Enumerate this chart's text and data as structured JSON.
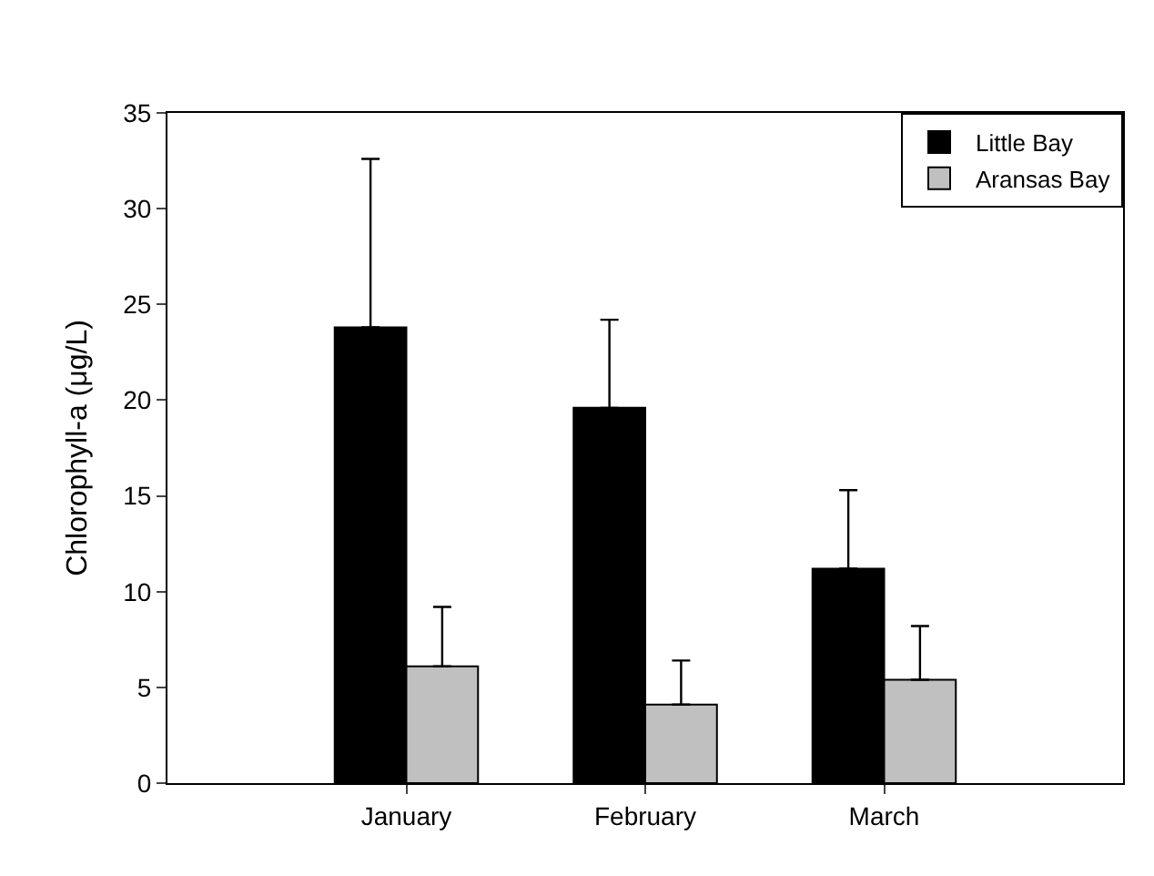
{
  "chart_data": {
    "type": "bar",
    "ylabel": "Chlorophyll-a (μg/L)",
    "categories": [
      "January",
      "February",
      "March"
    ],
    "series": [
      {
        "name": "Little Bay",
        "color": "#000000",
        "values": [
          23.8,
          19.6,
          11.2
        ],
        "errors": [
          [
            23.8,
            32.6
          ],
          [
            19.6,
            24.2
          ],
          [
            11.2,
            15.3
          ]
        ]
      },
      {
        "name": "Aransas Bay",
        "color": "#c0c0c0",
        "values": [
          6.1,
          4.1,
          5.4
        ],
        "errors": [
          [
            6.1,
            9.2
          ],
          [
            4.1,
            6.4
          ],
          [
            5.4,
            8.2
          ]
        ]
      }
    ],
    "ylim": [
      0,
      35
    ],
    "yticks": [
      0,
      5,
      10,
      15,
      20,
      25,
      30,
      35
    ],
    "legend": "top right"
  }
}
